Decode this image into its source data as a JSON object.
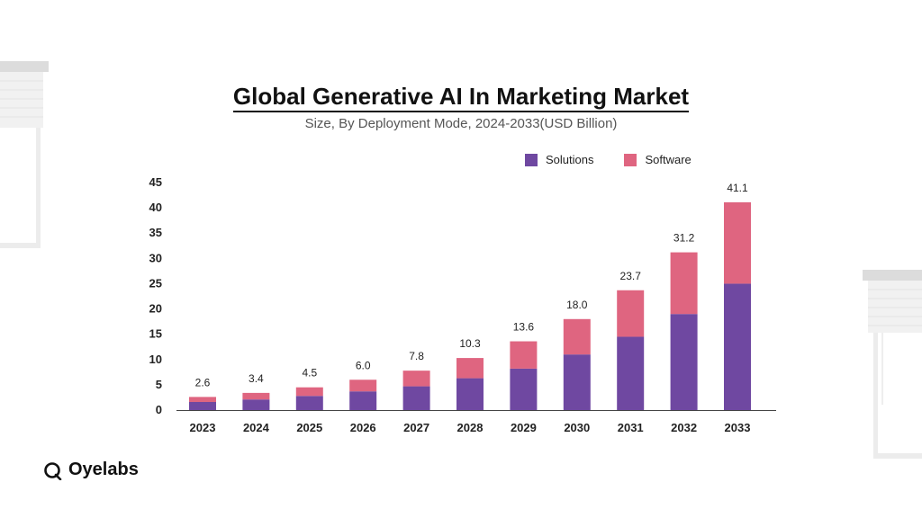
{
  "header": {
    "title": "Global Generative AI In Marketing Market",
    "subtitle": "Size, By Deployment Mode, 2024-2033(USD Billion)"
  },
  "brand": {
    "name": "Oyelabs"
  },
  "colors": {
    "solutions": "#6f48a1",
    "software": "#df6580"
  },
  "chart_data": {
    "type": "bar",
    "stacked": true,
    "title": "Global Generative AI In Marketing Market",
    "subtitle": "Size, By Deployment Mode, 2024-2033(USD Billion)",
    "categories": [
      "2023",
      "2024",
      "2025",
      "2026",
      "2027",
      "2028",
      "2029",
      "2030",
      "2031",
      "2032",
      "2033"
    ],
    "series": [
      {
        "name": "Solutions",
        "values": [
          1.6,
          2.1,
          2.8,
          3.7,
          4.7,
          6.3,
          8.2,
          11.0,
          14.5,
          19.0,
          25.0
        ]
      },
      {
        "name": "Software",
        "values": [
          1.0,
          1.3,
          1.7,
          2.3,
          3.1,
          4.0,
          5.4,
          7.0,
          9.2,
          12.2,
          16.1
        ]
      }
    ],
    "totals": [
      "2.6",
      "3.4",
      "4.5",
      "6.0",
      "7.8",
      "10.3",
      "13.6",
      "18.0",
      "23.7",
      "31.2",
      "41.1"
    ],
    "yticks": [
      0,
      5,
      10,
      15,
      20,
      25,
      30,
      35,
      40,
      45
    ],
    "ylim": [
      0,
      45
    ],
    "xlabel": "",
    "ylabel": "",
    "grid": false,
    "legend": "top-right"
  }
}
